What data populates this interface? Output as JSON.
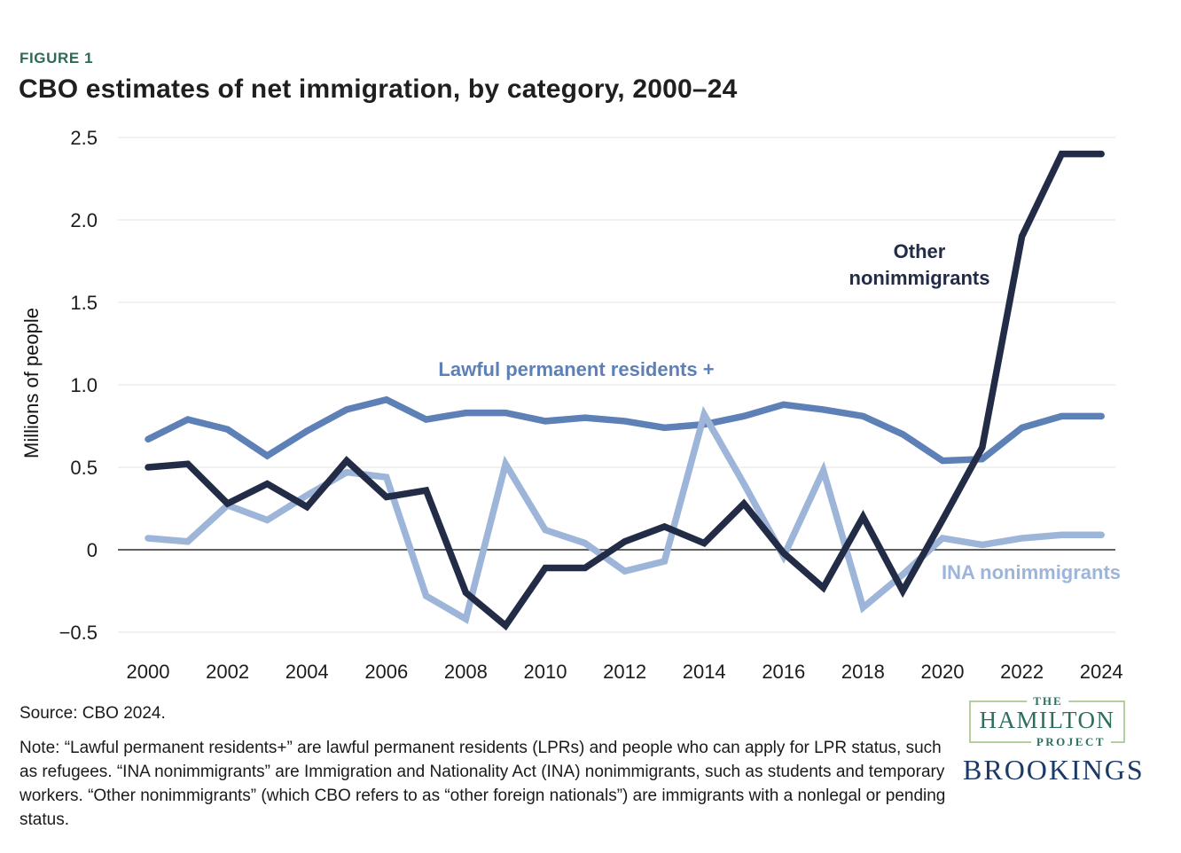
{
  "figure_label": "FIGURE 1",
  "title": "CBO estimates of net immigration, by category, 2000–24",
  "y_axis_title": "Millions of people",
  "annotations": {
    "lpr": "Lawful permanent residents +",
    "other_line1": "Other",
    "other_line2": "nonimmigrants",
    "ina": "INA nonimmigrants"
  },
  "chart_data": {
    "type": "line",
    "title": "CBO estimates of net immigration, by category, 2000–24",
    "xlabel": "",
    "ylabel": "Millions of people",
    "ylim": [
      -0.5,
      2.5
    ],
    "grid": "horizontal",
    "legend_position": "inline-annotations",
    "x": [
      2000,
      2001,
      2002,
      2003,
      2004,
      2005,
      2006,
      2007,
      2008,
      2009,
      2010,
      2011,
      2012,
      2013,
      2014,
      2015,
      2016,
      2017,
      2018,
      2019,
      2020,
      2021,
      2022,
      2023,
      2024
    ],
    "x_ticks": [
      {
        "label": "2000",
        "value": 2000
      },
      {
        "label": "2002",
        "value": 2002
      },
      {
        "label": "2004",
        "value": 2004
      },
      {
        "label": "2006",
        "value": 2006
      },
      {
        "label": "2008",
        "value": 2008
      },
      {
        "label": "2010",
        "value": 2010
      },
      {
        "label": "2012",
        "value": 2012
      },
      {
        "label": "2014",
        "value": 2014
      },
      {
        "label": "2016",
        "value": 2016
      },
      {
        "label": "2018",
        "value": 2018
      },
      {
        "label": "2020",
        "value": 2020
      },
      {
        "label": "2022",
        "value": 2022
      },
      {
        "label": "2024",
        "value": 2024
      }
    ],
    "y_ticks": [
      {
        "label": "2.5",
        "value": 2.5
      },
      {
        "label": "2.0",
        "value": 2.0
      },
      {
        "label": "1.5",
        "value": 1.5
      },
      {
        "label": "1.0",
        "value": 1.0
      },
      {
        "label": "0.5",
        "value": 0.5
      },
      {
        "label": "0",
        "value": 0
      },
      {
        "label": "−0.5",
        "value": -0.5
      }
    ],
    "series": [
      {
        "key": "lpr",
        "name": "Lawful permanent residents +",
        "color": "#5d80b6",
        "values": [
          0.67,
          0.79,
          0.73,
          0.57,
          0.72,
          0.85,
          0.91,
          0.79,
          0.83,
          0.83,
          0.78,
          0.8,
          0.78,
          0.74,
          0.76,
          0.81,
          0.88,
          0.85,
          0.81,
          0.7,
          0.54,
          0.55,
          0.74,
          0.81,
          0.81
        ]
      },
      {
        "key": "ina",
        "name": "INA nonimmigrants",
        "color": "#9db5d8",
        "values": [
          0.07,
          0.05,
          0.27,
          0.18,
          0.33,
          0.47,
          0.44,
          -0.28,
          -0.42,
          0.52,
          0.12,
          0.04,
          -0.13,
          -0.07,
          0.82,
          0.4,
          -0.04,
          0.48,
          -0.35,
          -0.15,
          0.07,
          0.03,
          0.07,
          0.09,
          0.09
        ]
      },
      {
        "key": "other",
        "name": "Other nonimmigrants",
        "color": "#232c47",
        "values": [
          0.5,
          0.52,
          0.28,
          0.4,
          0.26,
          0.54,
          0.32,
          0.36,
          -0.26,
          -0.46,
          -0.11,
          -0.11,
          0.05,
          0.14,
          0.04,
          0.28,
          -0.02,
          -0.23,
          0.2,
          -0.25,
          0.18,
          0.62,
          1.9,
          2.4,
          2.4
        ]
      }
    ]
  },
  "footer": {
    "source": "Source: CBO 2024.",
    "note": "Note: “Lawful permanent residents+” are lawful permanent residents (LPRs) and people who can apply for LPR status, such as refugees. “INA nonimmigrants” are Immigration and Nationality Act (INA) nonimmigrants, such as students and temporary workers. “Other nonimmigrants” (which CBO refers to as “other foreign nationals”) are immigrants with a nonlegal or pending status."
  },
  "logos": {
    "hamilton": {
      "the": "THE",
      "name": "HAMILTON",
      "project": "PROJECT"
    },
    "brookings": "BROOKINGS"
  }
}
